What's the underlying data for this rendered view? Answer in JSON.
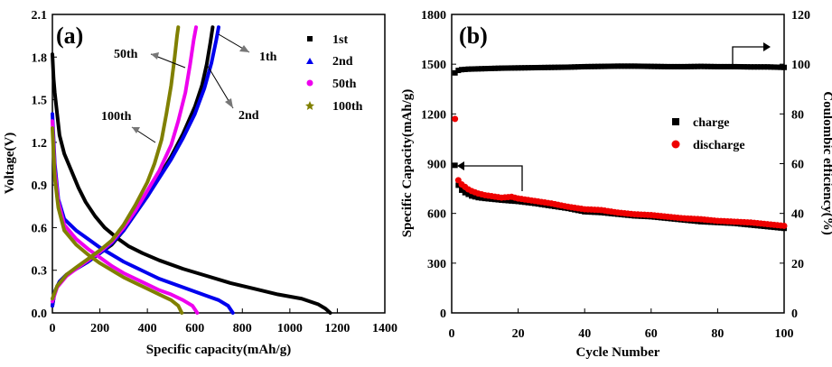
{
  "chart_data": [
    {
      "type": "line",
      "panel_label": "(a)",
      "xlabel": "Specific capacity(mAh/g)",
      "ylabel": "Voltage(V)",
      "xlim": [
        0,
        1400
      ],
      "ylim": [
        0.0,
        2.1
      ],
      "xticks": [
        "0",
        "200",
        "400",
        "600",
        "800",
        "1000",
        "1200",
        "1400"
      ],
      "yticks": [
        "0.0",
        "0.3",
        "0.6",
        "0.9",
        "1.2",
        "1.5",
        "1.8",
        "2.1"
      ],
      "legend_position": "top-right",
      "annotations": [
        "1th",
        "2nd",
        "50th",
        "100th"
      ],
      "series": [
        {
          "name": "1st",
          "color": "#000000",
          "marker": "square",
          "discharge": [
            [
              0,
              1.82
            ],
            [
              5,
              1.65
            ],
            [
              10,
              1.55
            ],
            [
              20,
              1.4
            ],
            [
              30,
              1.25
            ],
            [
              50,
              1.12
            ],
            [
              80,
              1.0
            ],
            [
              110,
              0.88
            ],
            [
              140,
              0.78
            ],
            [
              180,
              0.68
            ],
            [
              220,
              0.6
            ],
            [
              270,
              0.53
            ],
            [
              320,
              0.47
            ],
            [
              380,
              0.42
            ],
            [
              450,
              0.37
            ],
            [
              550,
              0.31
            ],
            [
              650,
              0.26
            ],
            [
              750,
              0.21
            ],
            [
              850,
              0.17
            ],
            [
              950,
              0.13
            ],
            [
              1050,
              0.1
            ],
            [
              1120,
              0.06
            ],
            [
              1150,
              0.03
            ],
            [
              1170,
              0.0
            ]
          ],
          "charge": [
            [
              0,
              0.05
            ],
            [
              10,
              0.15
            ],
            [
              30,
              0.22
            ],
            [
              60,
              0.27
            ],
            [
              100,
              0.31
            ],
            [
              150,
              0.36
            ],
            [
              200,
              0.42
            ],
            [
              250,
              0.48
            ],
            [
              300,
              0.58
            ],
            [
              350,
              0.7
            ],
            [
              400,
              0.82
            ],
            [
              450,
              0.96
            ],
            [
              500,
              1.1
            ],
            [
              550,
              1.26
            ],
            [
              600,
              1.45
            ],
            [
              630,
              1.6
            ],
            [
              650,
              1.75
            ],
            [
              665,
              1.9
            ],
            [
              675,
              2.01
            ]
          ]
        },
        {
          "name": "2nd",
          "color": "#0000ee",
          "marker": "triangle",
          "discharge": [
            [
              0,
              1.4
            ],
            [
              10,
              1.05
            ],
            [
              25,
              0.8
            ],
            [
              50,
              0.66
            ],
            [
              100,
              0.58
            ],
            [
              150,
              0.52
            ],
            [
              200,
              0.46
            ],
            [
              250,
              0.41
            ],
            [
              300,
              0.36
            ],
            [
              350,
              0.32
            ],
            [
              400,
              0.28
            ],
            [
              450,
              0.24
            ],
            [
              500,
              0.21
            ],
            [
              550,
              0.18
            ],
            [
              600,
              0.15
            ],
            [
              650,
              0.12
            ],
            [
              700,
              0.09
            ],
            [
              740,
              0.05
            ],
            [
              760,
              0.0
            ]
          ],
          "charge": [
            [
              0,
              0.05
            ],
            [
              10,
              0.15
            ],
            [
              30,
              0.22
            ],
            [
              60,
              0.27
            ],
            [
              100,
              0.31
            ],
            [
              150,
              0.36
            ],
            [
              200,
              0.42
            ],
            [
              250,
              0.49
            ],
            [
              300,
              0.58
            ],
            [
              350,
              0.7
            ],
            [
              400,
              0.82
            ],
            [
              450,
              0.95
            ],
            [
              500,
              1.08
            ],
            [
              550,
              1.23
            ],
            [
              600,
              1.4
            ],
            [
              640,
              1.58
            ],
            [
              670,
              1.76
            ],
            [
              690,
              1.92
            ],
            [
              700,
              2.01
            ]
          ]
        },
        {
          "name": "50th",
          "color": "#ee00ee",
          "marker": "circle",
          "discharge": [
            [
              0,
              1.35
            ],
            [
              10,
              1.0
            ],
            [
              25,
              0.78
            ],
            [
              50,
              0.62
            ],
            [
              100,
              0.52
            ],
            [
              150,
              0.45
            ],
            [
              200,
              0.39
            ],
            [
              250,
              0.33
            ],
            [
              300,
              0.28
            ],
            [
              350,
              0.24
            ],
            [
              400,
              0.2
            ],
            [
              450,
              0.16
            ],
            [
              500,
              0.13
            ],
            [
              550,
              0.09
            ],
            [
              590,
              0.05
            ],
            [
              610,
              0.0
            ]
          ],
          "charge": [
            [
              0,
              0.08
            ],
            [
              20,
              0.18
            ],
            [
              60,
              0.26
            ],
            [
              100,
              0.31
            ],
            [
              150,
              0.37
            ],
            [
              200,
              0.43
            ],
            [
              250,
              0.5
            ],
            [
              300,
              0.6
            ],
            [
              350,
              0.72
            ],
            [
              400,
              0.86
            ],
            [
              450,
              1.0
            ],
            [
              500,
              1.18
            ],
            [
              530,
              1.35
            ],
            [
              560,
              1.55
            ],
            [
              580,
              1.75
            ],
            [
              595,
              1.92
            ],
            [
              605,
              2.01
            ]
          ]
        },
        {
          "name": "100th",
          "color": "#808000",
          "marker": "star",
          "discharge": [
            [
              0,
              1.3
            ],
            [
              10,
              0.95
            ],
            [
              25,
              0.74
            ],
            [
              50,
              0.58
            ],
            [
              100,
              0.48
            ],
            [
              150,
              0.41
            ],
            [
              200,
              0.35
            ],
            [
              250,
              0.3
            ],
            [
              300,
              0.25
            ],
            [
              350,
              0.21
            ],
            [
              400,
              0.17
            ],
            [
              450,
              0.13
            ],
            [
              500,
              0.09
            ],
            [
              530,
              0.05
            ],
            [
              545,
              0.0
            ]
          ],
          "charge": [
            [
              0,
              0.1
            ],
            [
              20,
              0.19
            ],
            [
              60,
              0.27
            ],
            [
              100,
              0.32
            ],
            [
              150,
              0.38
            ],
            [
              200,
              0.44
            ],
            [
              250,
              0.51
            ],
            [
              300,
              0.62
            ],
            [
              350,
              0.76
            ],
            [
              400,
              0.92
            ],
            [
              430,
              1.05
            ],
            [
              460,
              1.22
            ],
            [
              480,
              1.4
            ],
            [
              500,
              1.6
            ],
            [
              515,
              1.8
            ],
            [
              525,
              1.95
            ],
            [
              530,
              2.01
            ]
          ]
        }
      ]
    },
    {
      "type": "scatter",
      "panel_label": "(b)",
      "xlabel": "Cycle Number",
      "ylabel": "Specific Capacity(mAh/g)",
      "y2label": "Coulombic efficiency(%)",
      "xlim": [
        0,
        100
      ],
      "ylim": [
        0,
        1800
      ],
      "y2lim": [
        0,
        120
      ],
      "xticks": [
        "0",
        "20",
        "40",
        "60",
        "80",
        "100"
      ],
      "yticks": [
        "0",
        "300",
        "600",
        "900",
        "1200",
        "1500",
        "1800"
      ],
      "y2ticks": [
        "0",
        "20",
        "40",
        "60",
        "80",
        "100",
        "120"
      ],
      "legend_position": "right",
      "series": [
        {
          "name": "charge",
          "color": "#000000",
          "marker": "square",
          "axis": "left",
          "x": [
            1,
            2,
            3,
            4,
            5,
            6,
            8,
            10,
            15,
            18,
            20,
            25,
            30,
            35,
            40,
            45,
            50,
            55,
            60,
            65,
            70,
            75,
            80,
            85,
            90,
            95,
            100
          ],
          "y": [
            890,
            770,
            740,
            725,
            715,
            705,
            695,
            690,
            680,
            675,
            672,
            660,
            645,
            630,
            610,
            605,
            595,
            585,
            580,
            570,
            560,
            550,
            545,
            540,
            530,
            520,
            510
          ]
        },
        {
          "name": "discharge",
          "color": "#ee0000",
          "marker": "circle",
          "axis": "left",
          "x": [
            1,
            2,
            3,
            4,
            5,
            6,
            8,
            10,
            15,
            18,
            20,
            25,
            30,
            35,
            40,
            45,
            50,
            55,
            60,
            65,
            70,
            75,
            80,
            85,
            90,
            95,
            100
          ],
          "y": [
            1170,
            800,
            775,
            760,
            745,
            735,
            720,
            710,
            695,
            700,
            690,
            675,
            660,
            640,
            625,
            620,
            605,
            595,
            590,
            580,
            570,
            565,
            555,
            550,
            545,
            535,
            525
          ]
        },
        {
          "name": "Coulombic efficiency",
          "color": "#000000",
          "marker": "square",
          "axis": "right",
          "x": [
            1,
            2,
            3,
            5,
            10,
            15,
            20,
            25,
            30,
            35,
            40,
            45,
            50,
            55,
            60,
            65,
            70,
            75,
            80,
            85,
            90,
            95,
            100
          ],
          "y": [
            96.5,
            97.5,
            97.8,
            98.0,
            98.2,
            98.4,
            98.5,
            98.6,
            98.7,
            98.8,
            99.0,
            99.1,
            99.2,
            99.2,
            99.1,
            99.0,
            99.0,
            99.1,
            99.0,
            99.0,
            98.9,
            98.9,
            98.7
          ]
        }
      ]
    }
  ]
}
